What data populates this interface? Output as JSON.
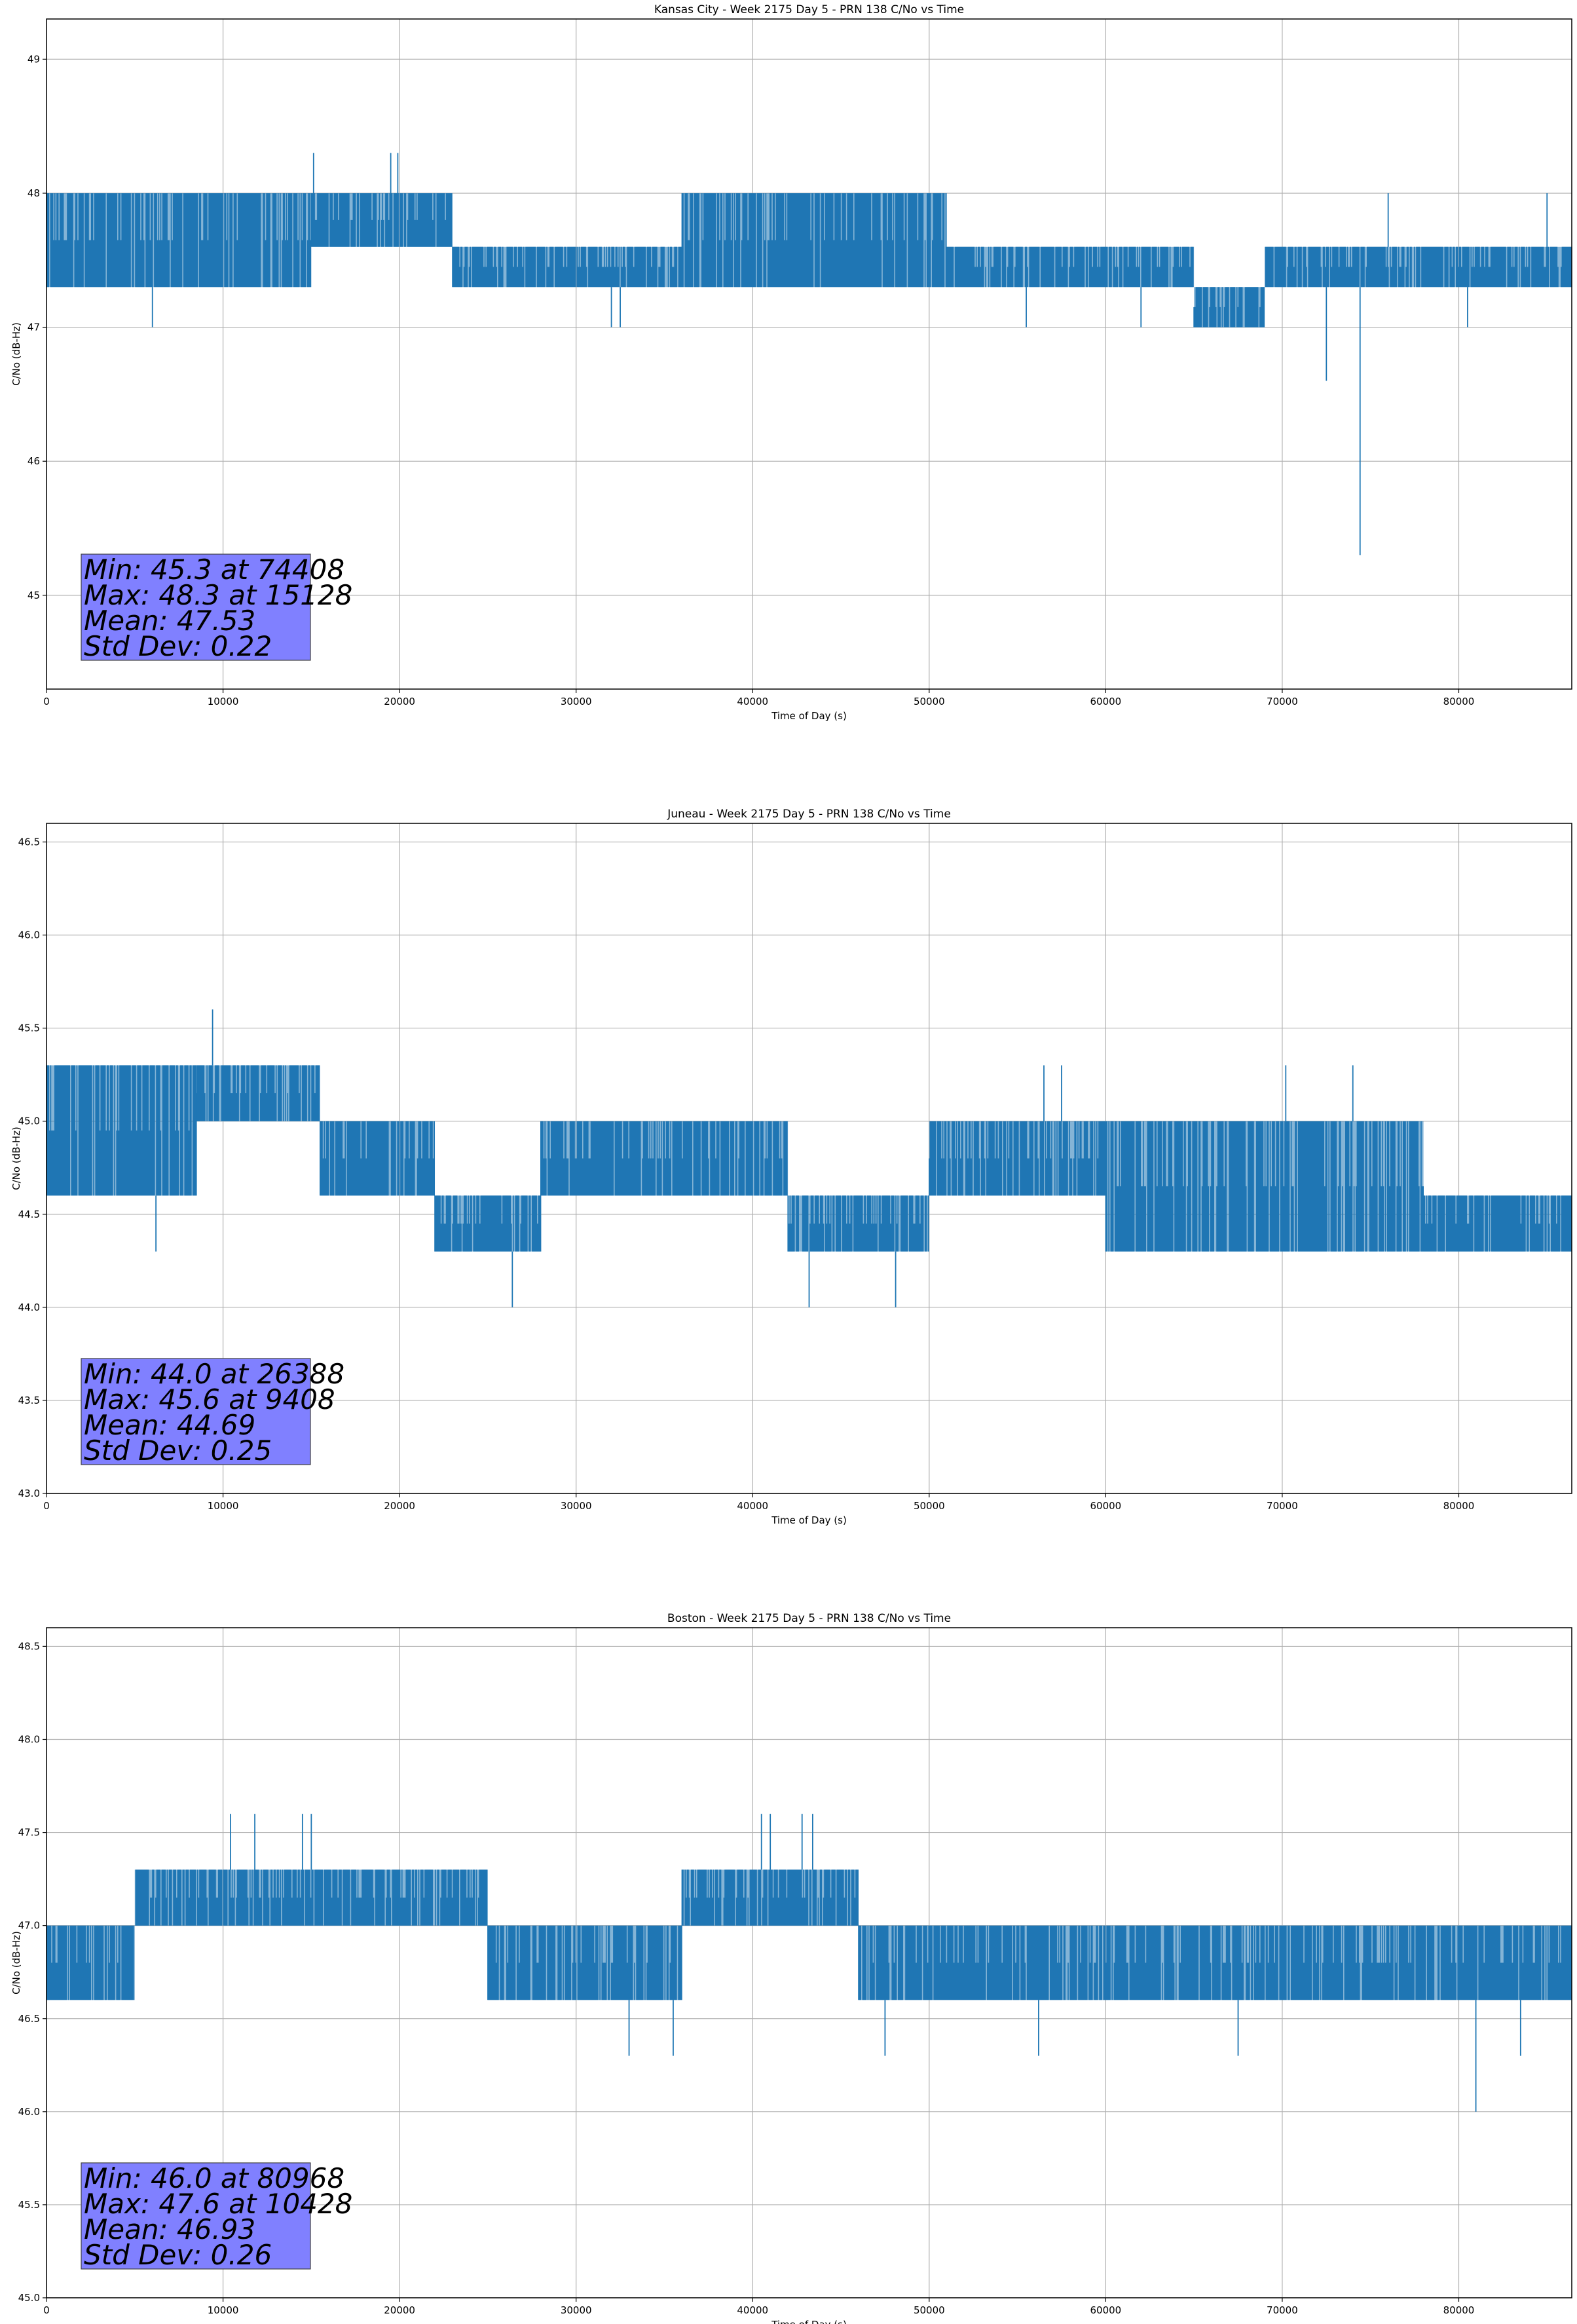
{
  "chart_data": [
    {
      "type": "line",
      "title": "Kansas City - Week 2175 Day 5 - PRN 138 C/No vs Time",
      "xlabel": "Time of Day (s)",
      "ylabel": "C/No (dB-Hz)",
      "xlim": [
        0,
        86400
      ],
      "ylim": [
        44.3,
        49.3
      ],
      "xticks": [
        0,
        10000,
        20000,
        30000,
        40000,
        50000,
        60000,
        70000,
        80000
      ],
      "xtick_labels": [
        "0",
        "10000",
        "20000",
        "30000",
        "40000",
        "50000",
        "60000",
        "70000",
        "80000"
      ],
      "yticks": [
        45,
        46,
        47,
        48,
        49
      ],
      "ytick_labels": [
        "45",
        "46",
        "47",
        "48",
        "49"
      ],
      "grid": true,
      "series_color": "#1f77b4",
      "stats_lines": [
        "Min: 45.3 at 74408",
        "Max: 48.3 at 15128",
        "Mean: 47.53",
        "Std Dev: 0.22"
      ],
      "stats_box_color": "#8080ff",
      "band_segments": [
        {
          "x": [
            0,
            6000
          ],
          "y": [
            47.3,
            48.0
          ]
        },
        {
          "x": [
            6000,
            15000
          ],
          "y": [
            47.3,
            48.0
          ]
        },
        {
          "x": [
            15000,
            23000
          ],
          "y": [
            47.6,
            48.0
          ]
        },
        {
          "x": [
            23000,
            30000
          ],
          "y": [
            47.3,
            47.6
          ]
        },
        {
          "x": [
            30000,
            36000
          ],
          "y": [
            47.3,
            47.6
          ]
        },
        {
          "x": [
            36000,
            51000
          ],
          "y": [
            47.3,
            48.0
          ]
        },
        {
          "x": [
            51000,
            65000
          ],
          "y": [
            47.3,
            47.6
          ]
        },
        {
          "x": [
            65000,
            69000
          ],
          "y": [
            47.0,
            47.3
          ]
        },
        {
          "x": [
            69000,
            86400
          ],
          "y": [
            47.3,
            47.6
          ]
        }
      ],
      "spikes": [
        {
          "x": 6000,
          "y": [
            47.0,
            47.3
          ]
        },
        {
          "x": 15128,
          "y": [
            48.0,
            48.3
          ]
        },
        {
          "x": 19500,
          "y": [
            48.0,
            48.3
          ]
        },
        {
          "x": 19900,
          "y": [
            48.0,
            48.3
          ]
        },
        {
          "x": 32000,
          "y": [
            47.0,
            47.3
          ]
        },
        {
          "x": 32500,
          "y": [
            47.0,
            47.3
          ]
        },
        {
          "x": 55500,
          "y": [
            47.0,
            47.3
          ]
        },
        {
          "x": 62000,
          "y": [
            47.0,
            47.3
          ]
        },
        {
          "x": 72500,
          "y": [
            46.6,
            47.3
          ]
        },
        {
          "x": 74408,
          "y": [
            45.3,
            47.3
          ]
        },
        {
          "x": 76000,
          "y": [
            47.6,
            48.0
          ]
        },
        {
          "x": 80500,
          "y": [
            47.0,
            47.3
          ]
        },
        {
          "x": 85000,
          "y": [
            47.6,
            48.0
          ]
        }
      ]
    },
    {
      "type": "line",
      "title": "Juneau - Week 2175 Day 5 - PRN 138 C/No vs Time",
      "xlabel": "Time of Day (s)",
      "ylabel": "C/No (dB-Hz)",
      "xlim": [
        0,
        86400
      ],
      "ylim": [
        43.0,
        46.6
      ],
      "xticks": [
        0,
        10000,
        20000,
        30000,
        40000,
        50000,
        60000,
        70000,
        80000
      ],
      "xtick_labels": [
        "0",
        "10000",
        "20000",
        "30000",
        "40000",
        "50000",
        "60000",
        "70000",
        "80000"
      ],
      "yticks": [
        43.0,
        43.5,
        44.0,
        44.5,
        45.0,
        45.5,
        46.0,
        46.5
      ],
      "ytick_labels": [
        "43.0",
        "43.5",
        "44.0",
        "44.5",
        "45.0",
        "45.5",
        "46.0",
        "46.5"
      ],
      "grid": true,
      "series_color": "#1f77b4",
      "stats_lines": [
        "Min: 44.0 at 26388",
        "Max: 45.6 at 9408",
        "Mean: 44.69",
        "Std Dev: 0.25"
      ],
      "stats_box_color": "#8080ff",
      "band_segments": [
        {
          "x": [
            0,
            8500
          ],
          "y": [
            44.6,
            45.3
          ]
        },
        {
          "x": [
            8500,
            15500
          ],
          "y": [
            45.0,
            45.3
          ]
        },
        {
          "x": [
            15500,
            22000
          ],
          "y": [
            44.6,
            45.0
          ]
        },
        {
          "x": [
            22000,
            28000
          ],
          "y": [
            44.3,
            44.6
          ]
        },
        {
          "x": [
            28000,
            42000
          ],
          "y": [
            44.6,
            45.0
          ]
        },
        {
          "x": [
            42000,
            50000
          ],
          "y": [
            44.3,
            44.6
          ]
        },
        {
          "x": [
            50000,
            60000
          ],
          "y": [
            44.6,
            45.0
          ]
        },
        {
          "x": [
            60000,
            78000
          ],
          "y": [
            44.3,
            45.0
          ]
        },
        {
          "x": [
            78000,
            86400
          ],
          "y": [
            44.3,
            44.6
          ]
        }
      ],
      "spikes": [
        {
          "x": 6200,
          "y": [
            44.3,
            44.6
          ]
        },
        {
          "x": 9408,
          "y": [
            45.3,
            45.6
          ]
        },
        {
          "x": 26388,
          "y": [
            44.0,
            44.3
          ]
        },
        {
          "x": 43200,
          "y": [
            44.0,
            44.3
          ]
        },
        {
          "x": 48100,
          "y": [
            44.0,
            44.3
          ]
        },
        {
          "x": 56500,
          "y": [
            45.0,
            45.3
          ]
        },
        {
          "x": 57500,
          "y": [
            45.0,
            45.3
          ]
        },
        {
          "x": 70200,
          "y": [
            45.0,
            45.3
          ]
        },
        {
          "x": 74000,
          "y": [
            45.0,
            45.3
          ]
        }
      ]
    },
    {
      "type": "line",
      "title": "Boston - Week 2175 Day 5 - PRN 138 C/No vs Time",
      "xlabel": "Time of Day (s)",
      "ylabel": "C/No (dB-Hz)",
      "xlim": [
        0,
        86400
      ],
      "ylim": [
        45.0,
        48.6
      ],
      "xticks": [
        0,
        10000,
        20000,
        30000,
        40000,
        50000,
        60000,
        70000,
        80000
      ],
      "xtick_labels": [
        "0",
        "10000",
        "20000",
        "30000",
        "40000",
        "50000",
        "60000",
        "70000",
        "80000"
      ],
      "yticks": [
        45.0,
        45.5,
        46.0,
        46.5,
        47.0,
        47.5,
        48.0,
        48.5
      ],
      "ytick_labels": [
        "45.0",
        "45.5",
        "46.0",
        "46.5",
        "47.0",
        "47.5",
        "48.0",
        "48.5"
      ],
      "grid": true,
      "series_color": "#1f77b4",
      "stats_lines": [
        "Min: 46.0 at 80968",
        "Max: 47.6 at 10428",
        "Mean: 46.93",
        "Std Dev: 0.26"
      ],
      "stats_box_color": "#8080ff",
      "band_segments": [
        {
          "x": [
            0,
            5000
          ],
          "y": [
            46.6,
            47.0
          ]
        },
        {
          "x": [
            5000,
            25000
          ],
          "y": [
            47.0,
            47.3
          ]
        },
        {
          "x": [
            25000,
            36000
          ],
          "y": [
            46.6,
            47.0
          ]
        },
        {
          "x": [
            36000,
            46000
          ],
          "y": [
            47.0,
            47.3
          ]
        },
        {
          "x": [
            46000,
            86400
          ],
          "y": [
            46.6,
            47.0
          ]
        }
      ],
      "spikes": [
        {
          "x": 10428,
          "y": [
            47.3,
            47.6
          ]
        },
        {
          "x": 11800,
          "y": [
            47.3,
            47.6
          ]
        },
        {
          "x": 14500,
          "y": [
            47.3,
            47.6
          ]
        },
        {
          "x": 15000,
          "y": [
            47.3,
            47.6
          ]
        },
        {
          "x": 40500,
          "y": [
            47.3,
            47.6
          ]
        },
        {
          "x": 41000,
          "y": [
            47.3,
            47.6
          ]
        },
        {
          "x": 42800,
          "y": [
            47.3,
            47.6
          ]
        },
        {
          "x": 43400,
          "y": [
            47.3,
            47.6
          ]
        },
        {
          "x": 33000,
          "y": [
            46.3,
            46.6
          ]
        },
        {
          "x": 35500,
          "y": [
            46.3,
            46.6
          ]
        },
        {
          "x": 47500,
          "y": [
            46.3,
            46.6
          ]
        },
        {
          "x": 56200,
          "y": [
            46.3,
            46.6
          ]
        },
        {
          "x": 67500,
          "y": [
            46.3,
            46.6
          ]
        },
        {
          "x": 80968,
          "y": [
            46.0,
            46.6
          ]
        },
        {
          "x": 83500,
          "y": [
            46.3,
            46.6
          ]
        }
      ]
    }
  ]
}
